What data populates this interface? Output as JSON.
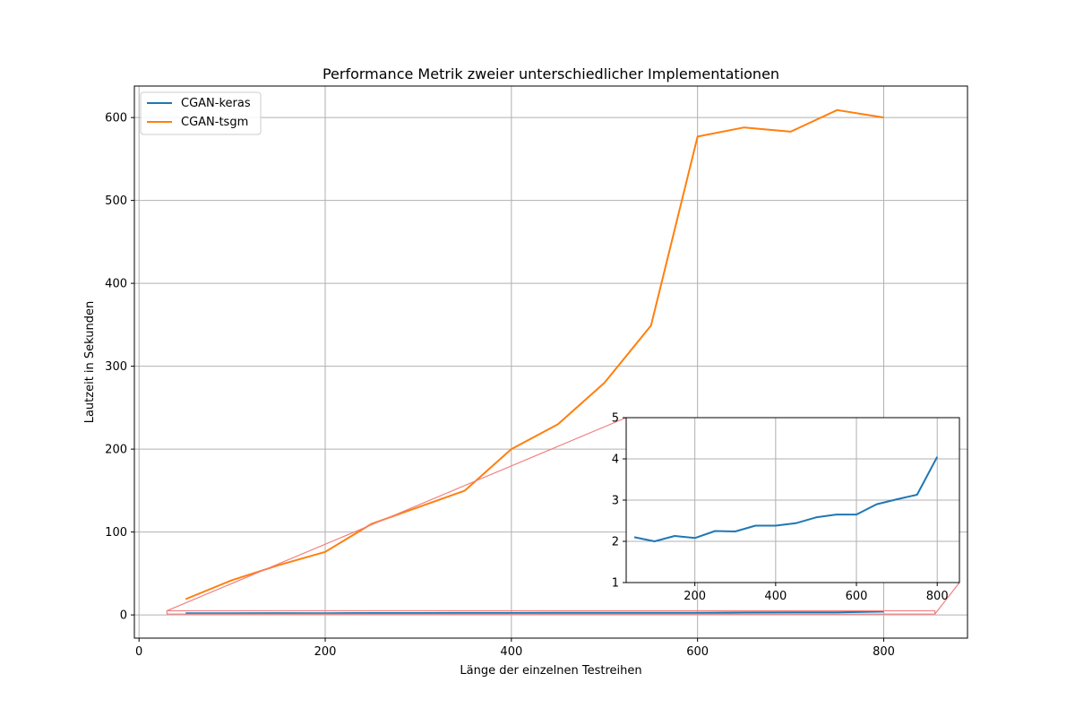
{
  "chart_data": {
    "type": "line",
    "title": "Performance Metrik zweier unterschiedlicher Implementationen",
    "xlabel": "Länge der einzelnen Testreihen",
    "ylabel": "Lautzeit in Sekunden",
    "xlim": [
      -5,
      890
    ],
    "ylim": [
      -28,
      638
    ],
    "xticks": [
      0,
      200,
      400,
      600,
      800
    ],
    "yticks": [
      0,
      100,
      200,
      300,
      400,
      500,
      600
    ],
    "grid": true,
    "legend": "top-left",
    "series": [
      {
        "name": "CGAN-keras",
        "color": "#1f77b4",
        "x": [
          50,
          100,
          150,
          200,
          250,
          300,
          350,
          400,
          450,
          500,
          550,
          600,
          650,
          700,
          750,
          800
        ],
        "y": [
          2.1,
          2.0,
          2.13,
          2.08,
          2.25,
          2.24,
          2.38,
          2.38,
          2.44,
          2.58,
          2.65,
          2.65,
          2.9,
          3.02,
          3.13,
          4.05
        ]
      },
      {
        "name": "CGAN-tsgm",
        "color": "#ff7f0e",
        "x": [
          50,
          100,
          150,
          200,
          250,
          300,
          350,
          400,
          450,
          500,
          550,
          600,
          650,
          700,
          750,
          800
        ],
        "y": [
          19,
          42,
          60,
          76,
          110,
          130,
          150,
          200,
          230,
          280,
          349,
          577,
          588,
          583,
          609,
          600
        ]
      }
    ],
    "inset": {
      "type": "line",
      "series_name": "CGAN-keras",
      "xlim": [
        30,
        855
      ],
      "ylim": [
        1,
        5
      ],
      "xticks": [
        200,
        400,
        600,
        800
      ],
      "yticks": [
        1,
        2,
        3,
        4,
        5
      ],
      "grid": true,
      "indicator_color": "#f08080"
    }
  }
}
